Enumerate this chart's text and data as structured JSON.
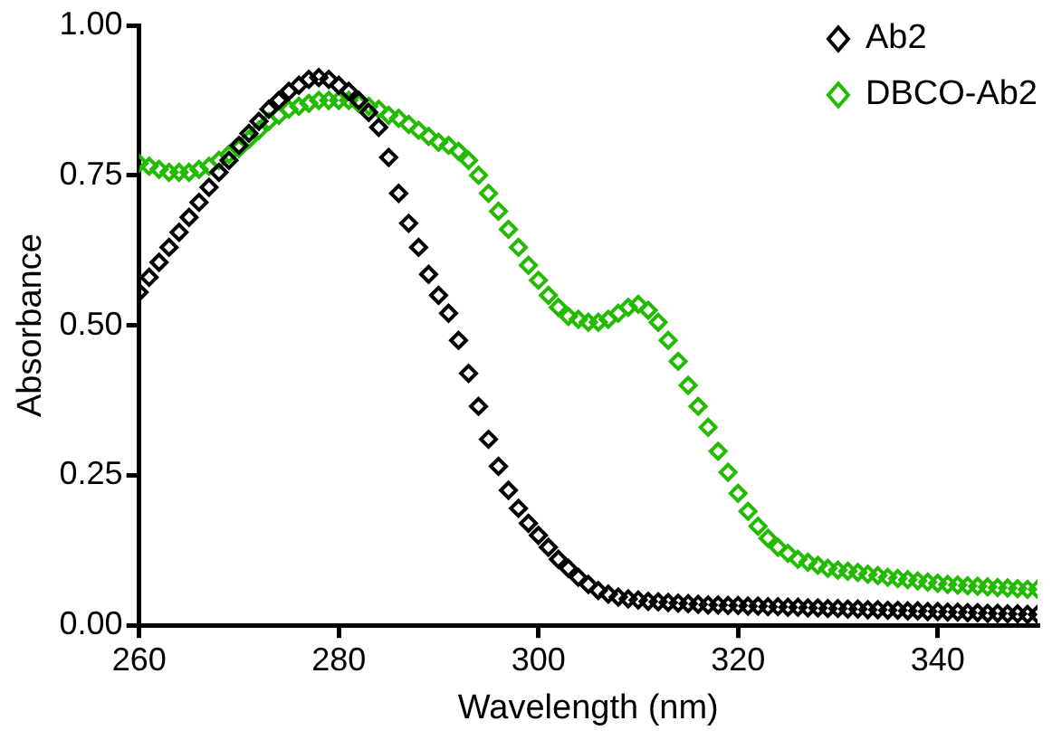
{
  "chart_data": {
    "type": "scatter",
    "xlabel": "Wavelength (nm)",
    "ylabel": "Absorbance",
    "x": [
      260,
      261,
      262,
      263,
      264,
      265,
      266,
      267,
      268,
      269,
      270,
      271,
      272,
      273,
      274,
      275,
      276,
      277,
      278,
      279,
      280,
      281,
      282,
      283,
      284,
      285,
      286,
      287,
      288,
      289,
      290,
      291,
      292,
      293,
      294,
      295,
      296,
      297,
      298,
      299,
      300,
      301,
      302,
      303,
      304,
      305,
      306,
      307,
      308,
      309,
      310,
      311,
      312,
      313,
      314,
      315,
      316,
      317,
      318,
      319,
      320,
      321,
      322,
      323,
      324,
      325,
      326,
      327,
      328,
      329,
      330,
      331,
      332,
      333,
      334,
      335,
      336,
      337,
      338,
      339,
      340,
      341,
      342,
      343,
      344,
      345,
      346,
      347,
      348,
      349,
      350
    ],
    "series": [
      {
        "name": "Ab2",
        "color": "#000000",
        "values": [
          0.555,
          0.58,
          0.605,
          0.63,
          0.655,
          0.68,
          0.705,
          0.73,
          0.755,
          0.775,
          0.8,
          0.82,
          0.84,
          0.86,
          0.875,
          0.89,
          0.9,
          0.91,
          0.913,
          0.91,
          0.9,
          0.89,
          0.875,
          0.855,
          0.83,
          0.78,
          0.72,
          0.67,
          0.63,
          0.585,
          0.55,
          0.52,
          0.475,
          0.42,
          0.365,
          0.31,
          0.265,
          0.225,
          0.195,
          0.17,
          0.15,
          0.13,
          0.11,
          0.095,
          0.08,
          0.068,
          0.058,
          0.052,
          0.047,
          0.044,
          0.042,
          0.04,
          0.039,
          0.038,
          0.037,
          0.036,
          0.035,
          0.034,
          0.034,
          0.033,
          0.033,
          0.032,
          0.032,
          0.031,
          0.031,
          0.03,
          0.03,
          0.029,
          0.029,
          0.028,
          0.028,
          0.027,
          0.027,
          0.026,
          0.026,
          0.025,
          0.025,
          0.024,
          0.024,
          0.023,
          0.023,
          0.022,
          0.022,
          0.021,
          0.021,
          0.02,
          0.02,
          0.019,
          0.019,
          0.018,
          0.018
        ]
      },
      {
        "name": "DBCO-Ab2",
        "color": "#22bb00",
        "values": [
          0.77,
          0.765,
          0.76,
          0.755,
          0.755,
          0.755,
          0.76,
          0.765,
          0.775,
          0.785,
          0.795,
          0.81,
          0.825,
          0.84,
          0.85,
          0.86,
          0.865,
          0.87,
          0.875,
          0.875,
          0.875,
          0.875,
          0.87,
          0.865,
          0.86,
          0.85,
          0.845,
          0.835,
          0.825,
          0.815,
          0.805,
          0.8,
          0.79,
          0.775,
          0.75,
          0.72,
          0.69,
          0.66,
          0.63,
          0.6,
          0.575,
          0.55,
          0.53,
          0.515,
          0.51,
          0.505,
          0.505,
          0.51,
          0.52,
          0.53,
          0.535,
          0.525,
          0.505,
          0.475,
          0.44,
          0.4,
          0.365,
          0.33,
          0.29,
          0.255,
          0.22,
          0.19,
          0.165,
          0.145,
          0.13,
          0.12,
          0.11,
          0.105,
          0.1,
          0.095,
          0.092,
          0.09,
          0.088,
          0.085,
          0.083,
          0.08,
          0.078,
          0.076,
          0.074,
          0.072,
          0.07,
          0.068,
          0.067,
          0.066,
          0.065,
          0.064,
          0.063,
          0.062,
          0.061,
          0.06,
          0.06
        ]
      }
    ],
    "xlim": [
      260,
      350
    ],
    "xticks": [
      260,
      280,
      300,
      320,
      340
    ],
    "ylim": [
      0,
      1
    ],
    "yticks": [
      {
        "value": 0,
        "label": "0.00"
      },
      {
        "value": 0.25,
        "label": "0.25"
      },
      {
        "value": 0.5,
        "label": "0.50"
      },
      {
        "value": 0.75,
        "label": "0.75"
      },
      {
        "value": 1,
        "label": "1.00"
      }
    ],
    "grid": false,
    "legend": "top right",
    "marker": "diamond"
  }
}
